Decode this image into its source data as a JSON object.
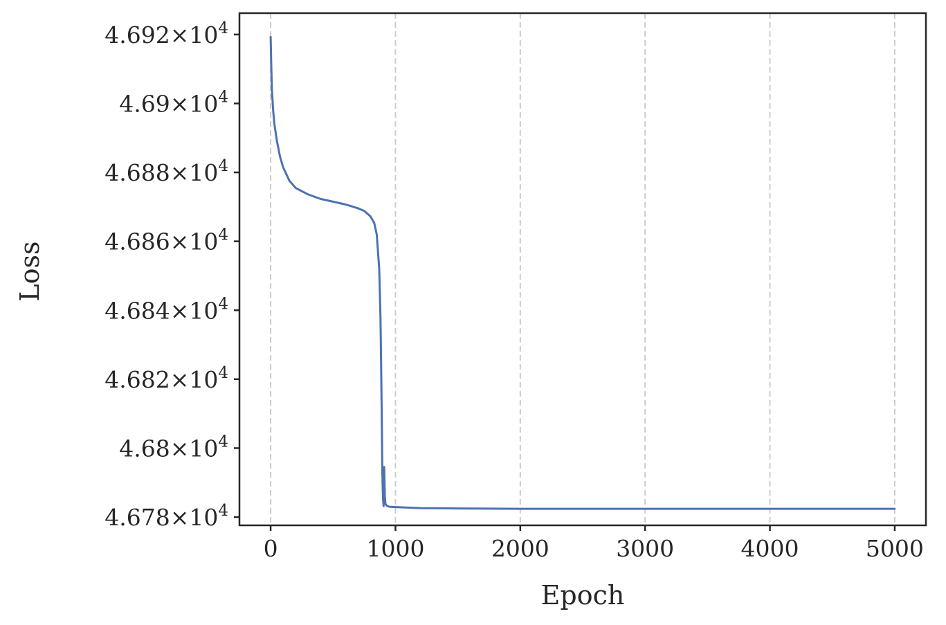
{
  "chart_data": {
    "type": "line",
    "title": "",
    "xlabel": "Epoch",
    "ylabel": "Loss",
    "xlim": [
      -250,
      5250
    ],
    "ylim": [
      46777.6,
      46926.2
    ],
    "xticks": [
      0,
      1000,
      2000,
      3000,
      4000,
      5000
    ],
    "xtick_labels": [
      "0",
      "1000",
      "2000",
      "3000",
      "4000",
      "5000"
    ],
    "yticks": [
      46780,
      46800,
      46820,
      46840,
      46860,
      46880,
      46900,
      46920
    ],
    "ytick_labels": [
      {
        "mantissa": "4.678",
        "base": "10",
        "exp": "4"
      },
      {
        "mantissa": "4.68",
        "base": "10",
        "exp": "4"
      },
      {
        "mantissa": "4.682",
        "base": "10",
        "exp": "4"
      },
      {
        "mantissa": "4.684",
        "base": "10",
        "exp": "4"
      },
      {
        "mantissa": "4.686",
        "base": "10",
        "exp": "4"
      },
      {
        "mantissa": "4.688",
        "base": "10",
        "exp": "4"
      },
      {
        "mantissa": "4.69",
        "base": "10",
        "exp": "4"
      },
      {
        "mantissa": "4.692",
        "base": "10",
        "exp": "4"
      }
    ],
    "grid": "vertical dashed",
    "series": [
      {
        "color": "#4c72b0",
        "x": [
          0,
          5,
          10,
          20,
          30,
          50,
          75,
          100,
          150,
          200,
          300,
          400,
          500,
          600,
          700,
          750,
          800,
          830,
          850,
          870,
          880,
          885,
          890,
          895,
          900,
          905,
          910,
          915,
          920,
          930,
          950,
          1000,
          1200,
          1500,
          2000,
          2500,
          3000,
          3500,
          4000,
          4500,
          5000
        ],
        "y": [
          46919.3,
          46911.0,
          46904.0,
          46898.0,
          46894.0,
          46889.2,
          46884.6,
          46881.5,
          46877.6,
          46875.5,
          46873.6,
          46872.3,
          46871.5,
          46870.7,
          46869.6,
          46868.8,
          46867.2,
          46865.3,
          46862.0,
          46852.0,
          46838.0,
          46825.0,
          46810.0,
          46793.0,
          46785.5,
          46783.2,
          46794.5,
          46786.0,
          46783.8,
          46783.3,
          46783.0,
          46782.9,
          46782.6,
          46782.5,
          46782.4,
          46782.4,
          46782.4,
          46782.4,
          46782.4,
          46782.4,
          46782.4
        ]
      }
    ]
  }
}
